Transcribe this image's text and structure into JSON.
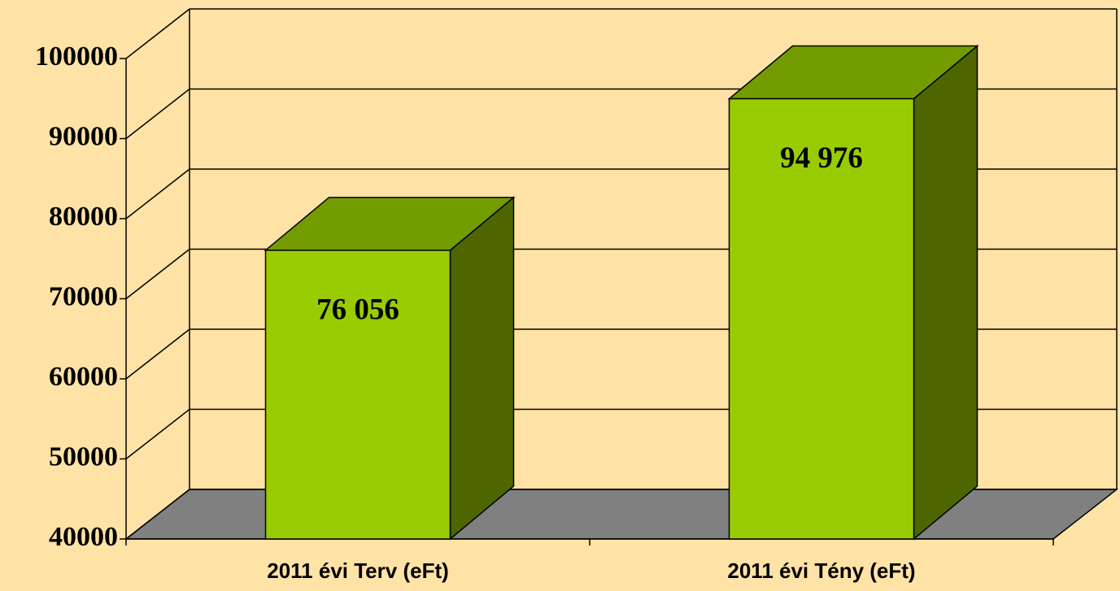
{
  "chart_data": {
    "type": "bar3d",
    "categories": [
      "2011 évi Terv (eFt)",
      "2011 évi Tény (eFt)"
    ],
    "values": [
      76056,
      94976
    ],
    "value_labels": [
      "76 056",
      "94 976"
    ],
    "colors": {
      "front": "#99CC00",
      "top": "#739C00",
      "side": "#4D6600",
      "floor": "#808080"
    },
    "ylim": [
      40000,
      100000
    ],
    "yticks": [
      40000,
      50000,
      60000,
      70000,
      80000,
      90000,
      100000
    ],
    "grid": true
  }
}
